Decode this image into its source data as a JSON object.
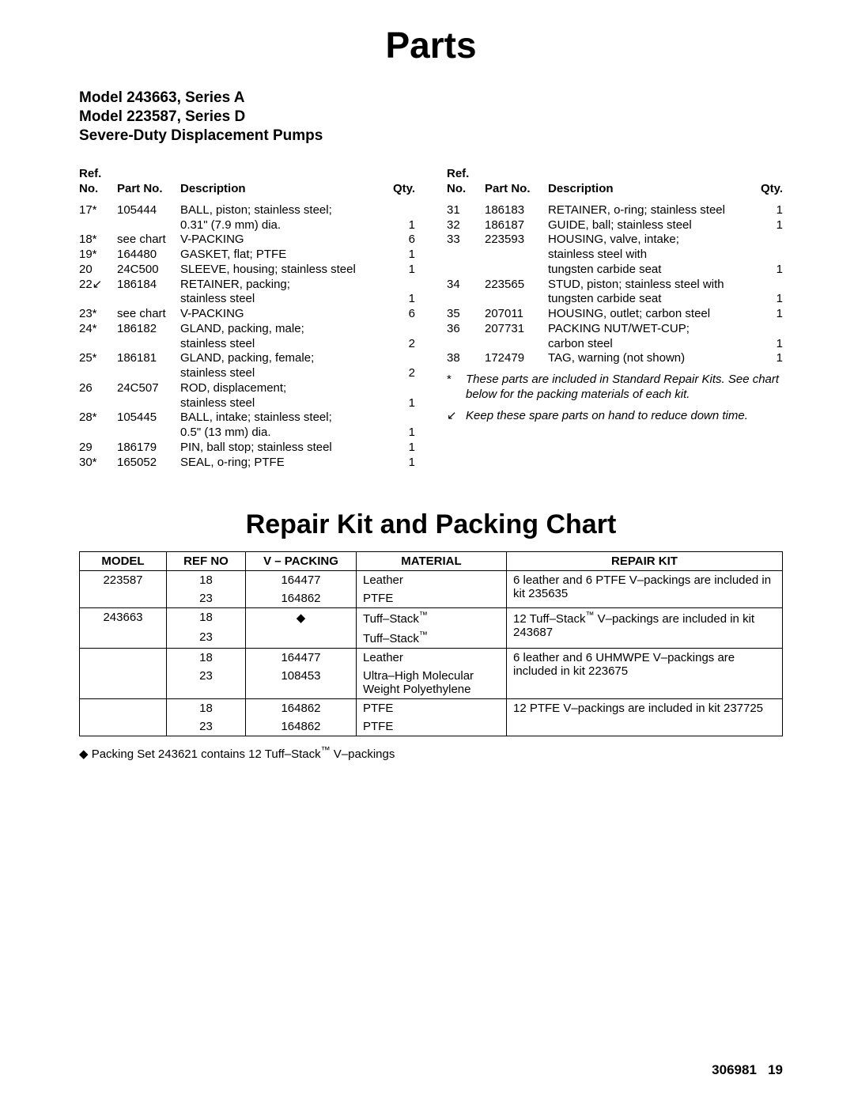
{
  "title": "Parts",
  "model_lines": [
    "Model 243663, Series A",
    "Model 223587, Series D",
    "Severe-Duty Displacement Pumps"
  ],
  "headers": {
    "ref": "Ref.\nNo.",
    "part": "Part No.",
    "desc": "Description",
    "qty": "Qty."
  },
  "left_rows": [
    {
      "ref": "17*",
      "part": "105444",
      "desc": "BALL, piston; stainless steel;\n0.31\" (7.9 mm) dia.",
      "qty": "1"
    },
    {
      "ref": "18*",
      "part": "see chart",
      "desc": "V-PACKING",
      "qty": "6"
    },
    {
      "ref": "19*",
      "part": "164480",
      "desc": "GASKET, flat; PTFE",
      "qty": "1"
    },
    {
      "ref": "20",
      "part": "24C500",
      "desc": "SLEEVE, housing; stainless steel",
      "qty": "1"
    },
    {
      "ref": "22↙",
      "part": "186184",
      "desc": "RETAINER, packing;\nstainless steel",
      "qty": "1"
    },
    {
      "ref": "23*",
      "part": "see chart",
      "desc": "V-PACKING",
      "qty": "6"
    },
    {
      "ref": "24*",
      "part": "186182",
      "desc": "GLAND, packing, male;\nstainless steel",
      "qty": "2"
    },
    {
      "ref": "25*",
      "part": "186181",
      "desc": "GLAND, packing, female;\nstainless steel",
      "qty": "2"
    },
    {
      "ref": "26",
      "part": "24C507",
      "desc": "ROD, displacement;\nstainless steel",
      "qty": "1"
    },
    {
      "ref": "28*",
      "part": "105445",
      "desc": "BALL, intake; stainless steel;\n0.5\" (13 mm) dia.",
      "qty": "1"
    },
    {
      "ref": "29",
      "part": "186179",
      "desc": "PIN, ball stop; stainless steel",
      "qty": "1"
    },
    {
      "ref": "30*",
      "part": "165052",
      "desc": "SEAL, o-ring; PTFE",
      "qty": "1"
    }
  ],
  "right_rows": [
    {
      "ref": "31",
      "part": "186183",
      "desc": "RETAINER, o-ring; stainless steel",
      "qty": "1"
    },
    {
      "ref": "32",
      "part": "186187",
      "desc": "GUIDE, ball; stainless steel",
      "qty": "1"
    },
    {
      "ref": "33",
      "part": "223593",
      "desc": "HOUSING, valve, intake;\nstainless steel with\ntungsten carbide seat",
      "qty": "1"
    },
    {
      "ref": "34",
      "part": "223565",
      "desc": "STUD, piston; stainless steel with\ntungsten carbide seat",
      "qty": "1"
    },
    {
      "ref": "35",
      "part": "207011",
      "desc": "HOUSING, outlet; carbon steel",
      "qty": "1"
    },
    {
      "ref": "36",
      "part": "207731",
      "desc": "PACKING NUT/WET-CUP;\ncarbon steel",
      "qty": "1"
    },
    {
      "ref": "38",
      "part": "172479",
      "desc": "TAG, warning (not shown)",
      "qty": "1"
    }
  ],
  "notes": [
    {
      "sym": "*",
      "text": "These parts are included in Standard Repair Kits. See chart below for the packing materials of each kit."
    },
    {
      "sym": "↙",
      "text": "Keep these spare parts on hand to reduce down time."
    }
  ],
  "chart_title": "Repair Kit and Packing Chart",
  "chart_headers": {
    "model": "MODEL",
    "refno": "REF NO",
    "vpacking": "V – PACKING",
    "material": "MATERIAL",
    "kit": "REPAIR KIT"
  },
  "chart_groups": [
    {
      "model": "223587",
      "rows": [
        {
          "ref": "18",
          "vp": "164477",
          "mat": "Leather"
        },
        {
          "ref": "23",
          "vp": "164862",
          "mat": "PTFE"
        }
      ],
      "kit": "6 leather and 6 PTFE V–packings are included in kit 235635"
    },
    {
      "model": "243663",
      "rows": [
        {
          "ref": "18",
          "vp": "◆",
          "mat": "Tuff–Stack™"
        },
        {
          "ref": "23",
          "vp": "",
          "mat": "Tuff–Stack™"
        }
      ],
      "kit": "12 Tuff–Stack™ V–packings are included in kit 243687"
    },
    {
      "model": "",
      "rows": [
        {
          "ref": "18",
          "vp": "164477",
          "mat": "Leather"
        },
        {
          "ref": "23",
          "vp": "108453",
          "mat": "Ultra–High Molecular Weight Polyethylene"
        }
      ],
      "kit": "6 leather and 6 UHMWPE V–packings are included in kit 223675"
    },
    {
      "model": "",
      "rows": [
        {
          "ref": "18",
          "vp": "164862",
          "mat": "PTFE"
        },
        {
          "ref": "23",
          "vp": "164862",
          "mat": "PTFE"
        }
      ],
      "kit": "12 PTFE V–packings are included in kit 237725"
    }
  ],
  "chart_footnote_pre": "◆ Packing Set 243621 contains 12 ",
  "chart_footnote_mid": "Tuff–Stack",
  "chart_footnote_post": "  V–packings",
  "footer_doc": "306981",
  "footer_page": "19"
}
